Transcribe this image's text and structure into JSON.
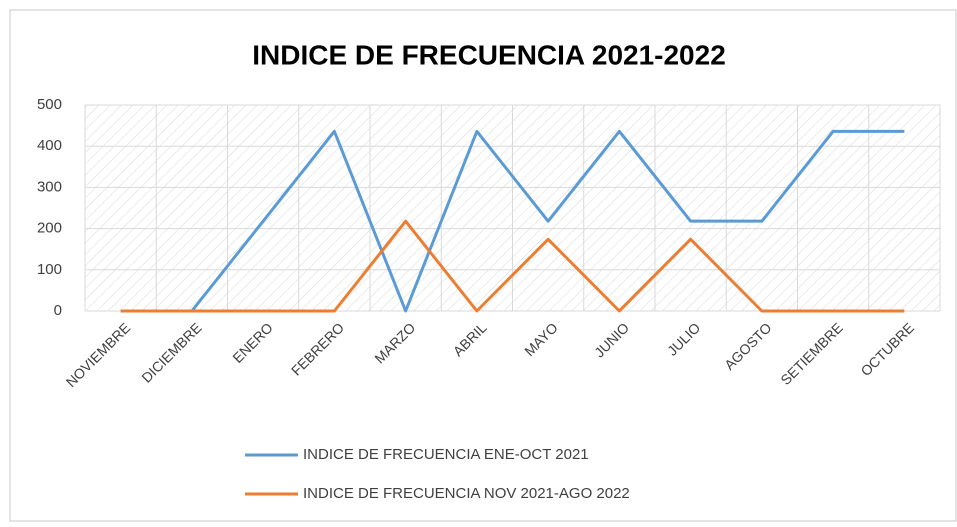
{
  "chart_data": {
    "type": "line",
    "title": "INDICE DE FRECUENCIA 2021-2022",
    "categories": [
      "NOVIEMBRE",
      "DICIEMBRE",
      "ENERO",
      "FEBRERO",
      "MARZO",
      "ABRIL",
      "MAYO",
      "JUNIO",
      "JULIO",
      "AGOSTO",
      "SETIEMBRE",
      "OCTUBRE"
    ],
    "series": [
      {
        "name": "INDICE DE FRECUENCIA ENE-OCT 2021",
        "color": "#5b9bd5",
        "values": [
          null,
          0,
          218,
          436,
          0,
          436,
          218,
          436,
          218,
          218,
          436,
          436
        ]
      },
      {
        "name": "INDICE DE FRECUENCIA NOV 2021-AGO 2022",
        "color": "#ed7d31",
        "values": [
          0,
          0,
          0,
          0,
          218,
          0,
          174,
          0,
          174,
          0,
          0,
          0
        ]
      }
    ],
    "ylim": [
      0,
      500
    ],
    "yticks": [
      0,
      100,
      200,
      300,
      400,
      500
    ],
    "grid": true,
    "legend": "bottom"
  }
}
